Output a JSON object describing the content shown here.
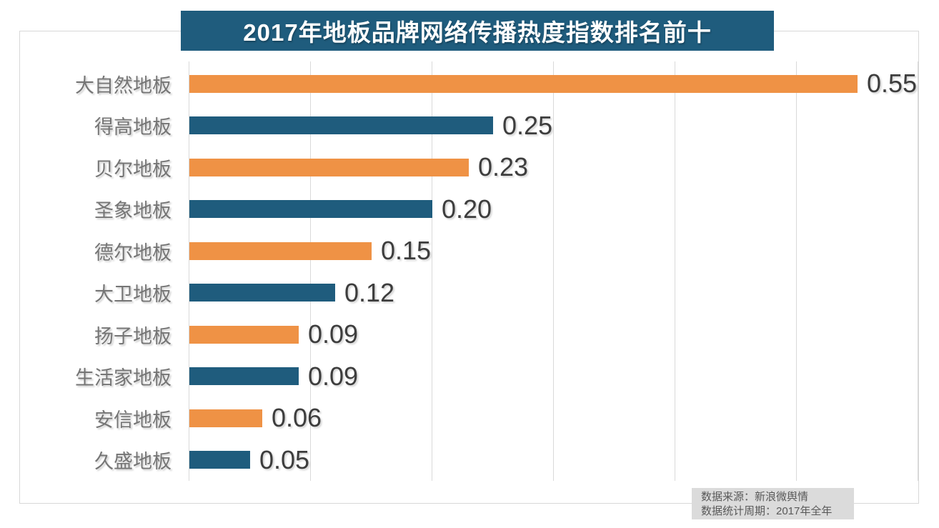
{
  "chart_data": {
    "type": "bar",
    "orientation": "horizontal",
    "title": "2017年地板品牌网络传播热度指数排名前十",
    "categories": [
      "大自然地板",
      "得高地板",
      "贝尔地板",
      "圣象地板",
      "德尔地板",
      "大卫地板",
      "扬子地板",
      "生活家地板",
      "安信地板",
      "久盛地板"
    ],
    "values": [
      0.55,
      0.25,
      0.23,
      0.2,
      0.15,
      0.12,
      0.09,
      0.09,
      0.06,
      0.05
    ],
    "value_labels": [
      "0.55",
      "0.25",
      "0.23",
      "0.20",
      "0.15",
      "0.12",
      "0.09",
      "0.09",
      "0.06",
      "0.05"
    ],
    "xlabel": "",
    "ylabel": "",
    "xlim": [
      0,
      0.6
    ],
    "gridline_interval": 0.1,
    "grid": true,
    "legend": false,
    "bar_colors_alternating": [
      "#EF9245",
      "#1F5C7D"
    ]
  },
  "source_note": {
    "line1": "数据来源：新浪微舆情",
    "line2": "数据统计周期：2017年全年"
  },
  "colors": {
    "title_background": "#1F5C7D",
    "title_text": "#FFFFFF",
    "bar_orange": "#EF9245",
    "bar_blue": "#1F5C7D",
    "category_label": "#757575",
    "value_label": "#3D3D3D",
    "gridline": "#D9D9D9",
    "frame_border": "#D8D8D8",
    "source_note_background": "#DBDBDB",
    "source_note_text": "#595959",
    "page_background": "#FFFFFF"
  }
}
